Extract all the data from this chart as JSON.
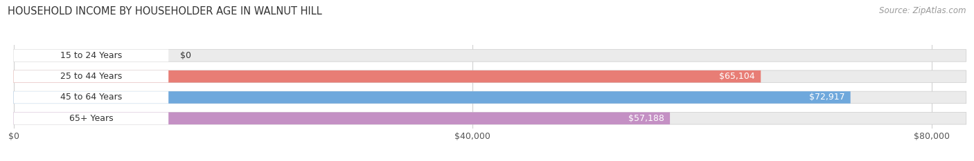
{
  "title": "HOUSEHOLD INCOME BY HOUSEHOLDER AGE IN WALNUT HILL",
  "source": "Source: ZipAtlas.com",
  "categories": [
    "15 to 24 Years",
    "25 to 44 Years",
    "45 to 64 Years",
    "65+ Years"
  ],
  "values": [
    0,
    65104,
    72917,
    57188
  ],
  "bar_colors": [
    "#f2c89b",
    "#e87d75",
    "#6fa8dc",
    "#c490c4"
  ],
  "bar_bg_color": "#ebebeb",
  "x_ticks": [
    0,
    40000,
    80000
  ],
  "x_tick_labels": [
    "$0",
    "$40,000",
    "$80,000"
  ],
  "xlim_max": 83000,
  "bar_height": 0.58,
  "label_fontsize": 9.0,
  "title_fontsize": 10.5,
  "tick_fontsize": 9.0,
  "source_fontsize": 8.5,
  "grid_color": "#d0d0d0",
  "text_dark": "#333333",
  "text_source": "#999999"
}
